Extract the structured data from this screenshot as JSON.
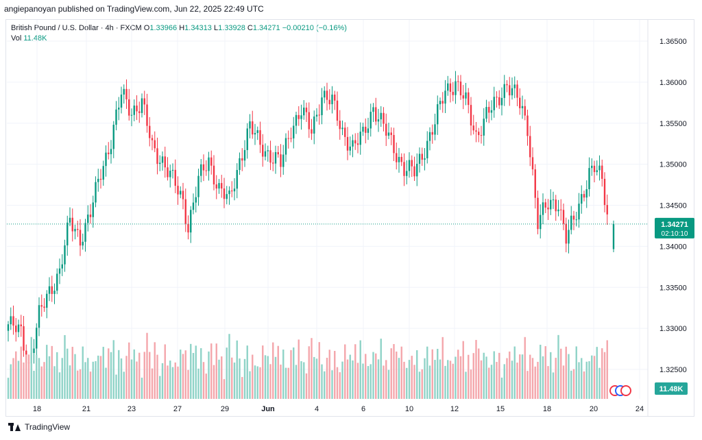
{
  "byline": "angiepanoyan published on TradingView.com, Jun 22, 2025 22:49 UTC",
  "legend": {
    "symbol": "British Pound / U.S. Dollar · 4h · FXCM",
    "o_label": "O",
    "o": "1.33966",
    "h_label": "H",
    "h": "1.34313",
    "l_label": "L",
    "l": "1.33928",
    "c_label": "C",
    "c": "1.34271",
    "change": "−0.00210 (−0.16%)",
    "vol_label": "Vol",
    "vol": "11.48K"
  },
  "footer": {
    "brand": "TradingView"
  },
  "colors": {
    "up": "#089981",
    "down": "#f23645",
    "up_volume": "#8fd3c7",
    "down_volume": "#f4a6ab",
    "grid": "#f0f3fa",
    "axis_text": "#131722"
  },
  "chart_data": {
    "type": "candlestick",
    "ylim": [
      1.3225,
      1.3675
    ],
    "y_ticks": [
      "1.36500",
      "1.36000",
      "1.35500",
      "1.35000",
      "1.34500",
      "1.34000",
      "1.33500",
      "1.33000",
      "1.32500"
    ],
    "x_ticks": [
      "18",
      "21",
      "23",
      "27",
      "29",
      "Jun",
      "4",
      "6",
      "10",
      "12",
      "15",
      "18",
      "20",
      "24"
    ],
    "last_price": "1.34271",
    "countdown": "02:10:10",
    "last_volume": "11.48K",
    "anchors": [
      [
        0,
        1.3305
      ],
      [
        5,
        1.3295
      ],
      [
        8,
        1.3255
      ],
      [
        12,
        1.3315
      ],
      [
        16,
        1.3345
      ],
      [
        20,
        1.337
      ],
      [
        22,
        1.34
      ],
      [
        24,
        1.343
      ],
      [
        28,
        1.341
      ],
      [
        32,
        1.344
      ],
      [
        36,
        1.349
      ],
      [
        40,
        1.353
      ],
      [
        44,
        1.3585
      ],
      [
        48,
        1.3565
      ],
      [
        52,
        1.3575
      ],
      [
        56,
        1.352
      ],
      [
        60,
        1.3505
      ],
      [
        64,
        1.348
      ],
      [
        68,
        1.3455
      ],
      [
        70,
        1.3425
      ],
      [
        74,
        1.348
      ],
      [
        78,
        1.3505
      ],
      [
        82,
        1.347
      ],
      [
        86,
        1.3455
      ],
      [
        90,
        1.3505
      ],
      [
        94,
        1.3545
      ],
      [
        98,
        1.3525
      ],
      [
        102,
        1.351
      ],
      [
        106,
        1.35
      ],
      [
        110,
        1.3545
      ],
      [
        114,
        1.3565
      ],
      [
        118,
        1.354
      ],
      [
        122,
        1.3585
      ],
      [
        126,
        1.3575
      ],
      [
        130,
        1.354
      ],
      [
        134,
        1.352
      ],
      [
        138,
        1.3535
      ],
      [
        142,
        1.357
      ],
      [
        146,
        1.3545
      ],
      [
        150,
        1.352
      ],
      [
        154,
        1.3495
      ],
      [
        158,
        1.349
      ],
      [
        162,
        1.352
      ],
      [
        166,
        1.355
      ],
      [
        170,
        1.359
      ],
      [
        174,
        1.36
      ],
      [
        178,
        1.3575
      ],
      [
        182,
        1.3535
      ],
      [
        186,
        1.356
      ],
      [
        190,
        1.3575
      ],
      [
        194,
        1.36
      ],
      [
        198,
        1.358
      ],
      [
        202,
        1.3545
      ],
      [
        204,
        1.349
      ],
      [
        206,
        1.343
      ],
      [
        210,
        1.345
      ],
      [
        214,
        1.3455
      ],
      [
        217,
        1.341
      ],
      [
        220,
        1.343
      ],
      [
        223,
        1.346
      ],
      [
        226,
        1.349
      ],
      [
        228,
        1.3495
      ],
      [
        231,
        1.348
      ],
      [
        233,
        1.344
      ]
    ],
    "last_bar": {
      "open": 1.33966,
      "high": 1.34313,
      "low": 1.33928,
      "close": 1.34271
    },
    "volume_levels": [
      0.22,
      0.26,
      0.3,
      0.44,
      0.34,
      0.42,
      0.28,
      0.46,
      0.36,
      0.52,
      0.24,
      0.4,
      0.3,
      0.24,
      0.38,
      0.46,
      0.32,
      0.5,
      0.28,
      0.36,
      0.18,
      0.42,
      0.56,
      0.4,
      0.3,
      0.48,
      0.34,
      0.2,
      0.3,
      0.44,
      0.26,
      0.38
    ]
  }
}
